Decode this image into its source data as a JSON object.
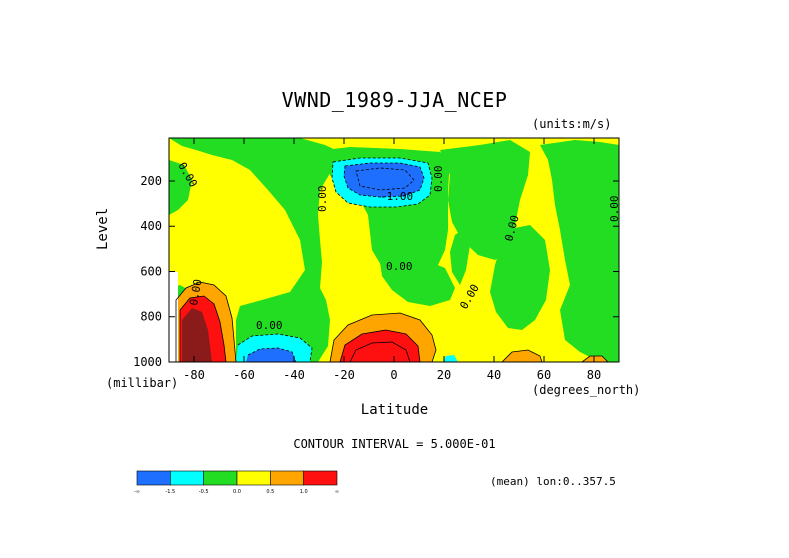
{
  "chart_data": {
    "type": "heatmap",
    "title": "VWND_1989-JJA_NCEP",
    "units": "(units:m/s)",
    "xlabel": "Latitude",
    "xunit": "(degrees_north)",
    "ylabel": "Level",
    "yunit": "(millibar)",
    "xlim": [
      -90,
      90
    ],
    "ylim": [
      1000,
      10
    ],
    "x_ticks": [
      "-80",
      "-60",
      "-40",
      "-20",
      "0",
      "20",
      "40",
      "60",
      "80"
    ],
    "x_tick_values": [
      -80,
      -60,
      -40,
      -20,
      0,
      20,
      40,
      60,
      80
    ],
    "y_ticks": [
      "200",
      "400",
      "600",
      "800",
      "1000"
    ],
    "y_tick_values": [
      200,
      400,
      600,
      800,
      1000
    ],
    "contour_interval": "CONTOUR INTERVAL = 5.000E-01",
    "footer": "(mean) lon:0..357.5",
    "contour_labels": [
      "0.00",
      "0.00",
      "0.00",
      "0.00",
      "0.00",
      "0.00",
      "0.00",
      "-1.00",
      "0.00",
      "0.00"
    ],
    "colorbar": {
      "colors": [
        "#1f6fff",
        "#00ffff",
        "#22dd22",
        "#ffff00",
        "#ffa500",
        "#ff1010"
      ],
      "labels": [
        "-∞",
        "-1.5",
        "-0.5",
        "0.0",
        "0.5",
        "1.0",
        "∞"
      ]
    },
    "colors": {
      "negative_strong": "#1f6fff",
      "negative_mid": "#00ffff",
      "near_zero": "#22dd22",
      "positive_low": "#ffff00",
      "positive_mid": "#ffa500",
      "positive_high": "#ff1010",
      "positive_extreme": "#8b1a1a"
    }
  }
}
